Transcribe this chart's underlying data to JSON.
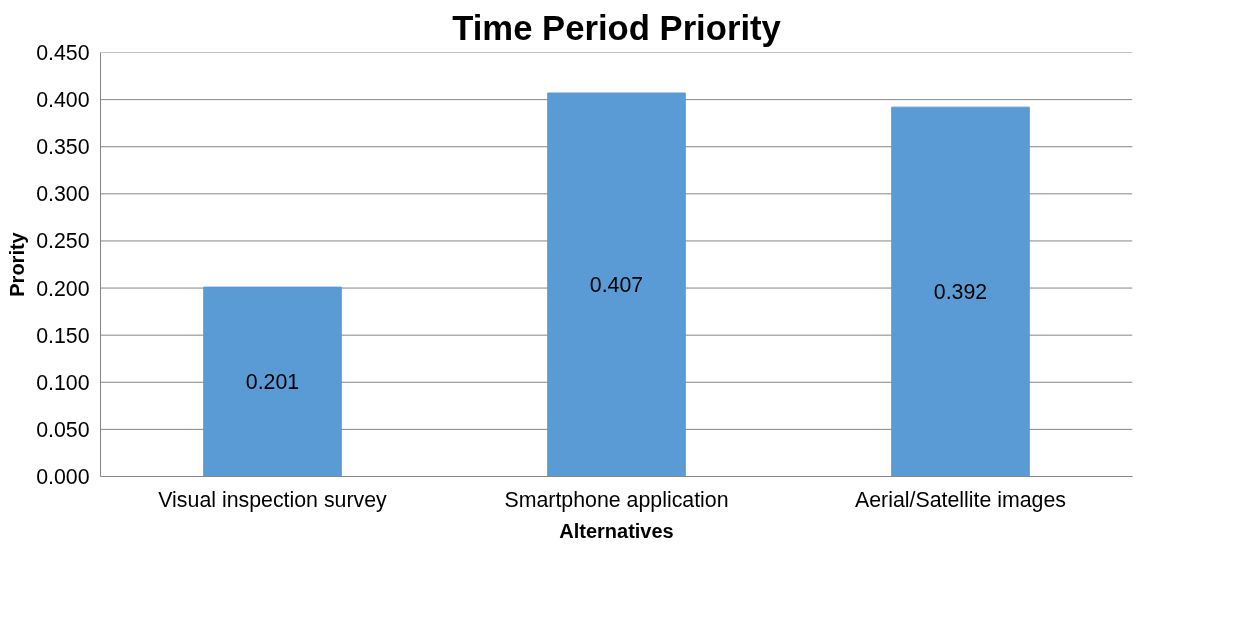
{
  "chart_data": {
    "type": "bar",
    "title": "Time Period Priority",
    "xlabel": "Alternatives",
    "ylabel": "Prority",
    "categories": [
      "Visual inspection survey",
      "Smartphone application",
      "Aerial/Satellite images"
    ],
    "values": [
      0.201,
      0.407,
      0.392
    ],
    "color": "#5b9bd5",
    "data_labels": true,
    "ylim": [
      0,
      0.45
    ],
    "yticks": [
      {
        "value": 0,
        "label": "0.000"
      },
      {
        "value": 0.05,
        "label": "0.050"
      },
      {
        "value": 0.1,
        "label": "0.100"
      },
      {
        "value": 0.15,
        "label": "0.150"
      },
      {
        "value": 0.2,
        "label": "0.200"
      },
      {
        "value": 0.25,
        "label": "0.250"
      },
      {
        "value": 0.3,
        "label": "0.300"
      },
      {
        "value": 0.35,
        "label": "0.350"
      },
      {
        "value": 0.4,
        "label": "0.400"
      },
      {
        "value": 0.45,
        "label": "0.450"
      }
    ],
    "grid": "y"
  }
}
